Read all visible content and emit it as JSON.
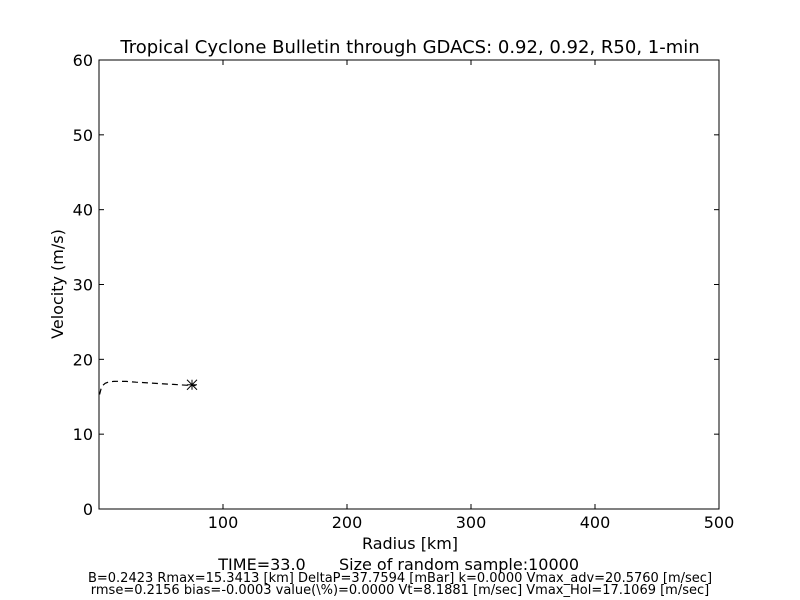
{
  "chart_data": {
    "type": "line",
    "title": "Tropical Cyclone Bulletin through GDACS: 0.92, 0.92, R50, 1-min",
    "xlabel": "Radius [km]",
    "ylabel": "Velocity (m/s)",
    "xlim": [
      0,
      500
    ],
    "ylim": [
      0,
      60
    ],
    "xticks": [
      100,
      200,
      300,
      400,
      500
    ],
    "yticks": [
      0,
      10,
      20,
      30,
      40,
      50,
      60
    ],
    "grid": false,
    "series": [
      {
        "style": "dashed",
        "color": "#000000",
        "x": [
          0.5,
          1.5,
          3,
          5,
          8,
          12,
          16,
          22,
          30,
          40,
          50,
          60,
          70,
          78
        ],
        "y": [
          15.3,
          16.0,
          16.5,
          16.8,
          17.0,
          17.05,
          17.07,
          17.05,
          16.95,
          16.85,
          16.75,
          16.65,
          16.55,
          16.5
        ]
      }
    ],
    "markers": [
      {
        "symbol": "x",
        "x": 75,
        "y": 16.6
      },
      {
        "symbol": "+",
        "x": 75,
        "y": 16.6
      }
    ]
  },
  "footer": {
    "time_label": "TIME=33.0",
    "sample_label": "Size of random sample:10000",
    "params_line1": "B=0.2423 Rmax=15.3413 [km]  DeltaP=37.7594 [mBar] k=0.0000 Vmax_adv=20.5760 [m/sec]",
    "params_line2": "rmse=0.2156 bias=-0.0003 value(\\%)=0.0000 Vt=8.1881 [m/sec] Vmax_Hol=17.1069 [m/sec]"
  }
}
